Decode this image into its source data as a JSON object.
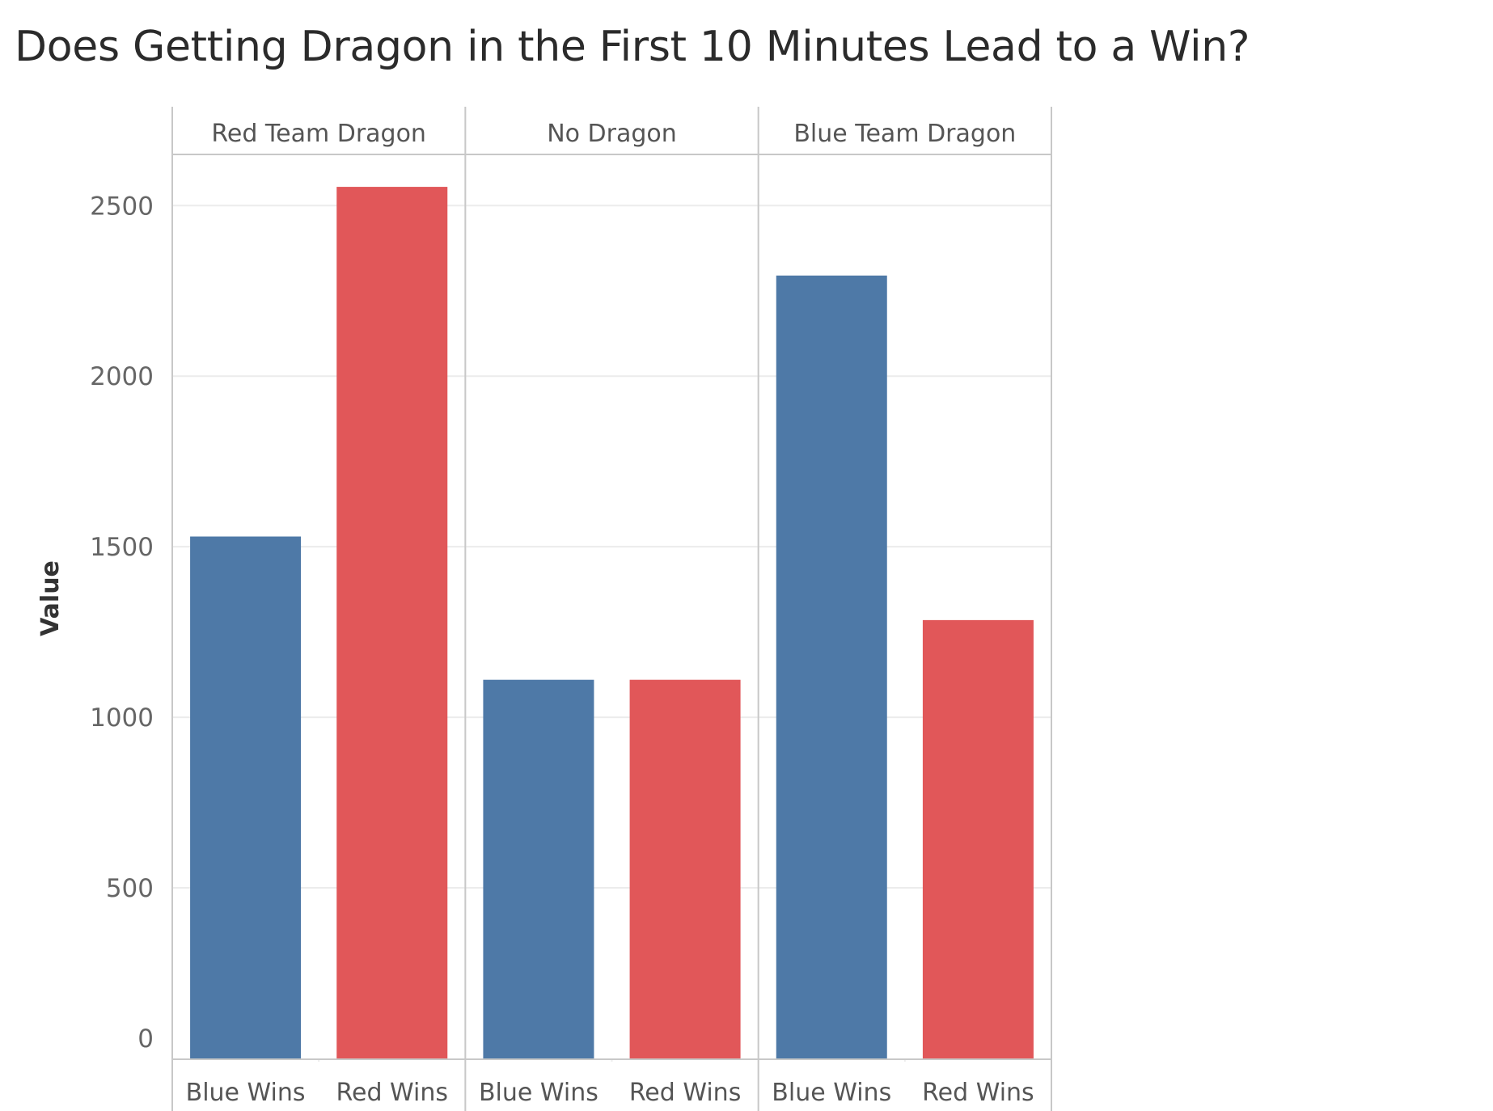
{
  "colors": {
    "blue": "#4e79a7",
    "red": "#e15759",
    "grid": "#ececec",
    "frame": "#c8c8c8"
  },
  "chart_data": {
    "type": "bar",
    "title": "Does Getting Dragon in the First 10 Minutes Lead to a Win?",
    "ylabel": "Value",
    "xlabel": "",
    "ylim": [
      0,
      2650
    ],
    "yticks": [
      0,
      500,
      1000,
      1500,
      2000,
      2500
    ],
    "grid": true,
    "panels": [
      {
        "name": "Red Team Dragon",
        "categories": [
          "Blue Wins",
          "Red Wins"
        ],
        "values": [
          1530,
          2555
        ]
      },
      {
        "name": "No Dragon",
        "categories": [
          "Blue Wins",
          "Red Wins"
        ],
        "values": [
          1110,
          1110
        ]
      },
      {
        "name": "Blue Team Dragon",
        "categories": [
          "Blue Wins",
          "Red Wins"
        ],
        "values": [
          2295,
          1285
        ]
      }
    ]
  }
}
